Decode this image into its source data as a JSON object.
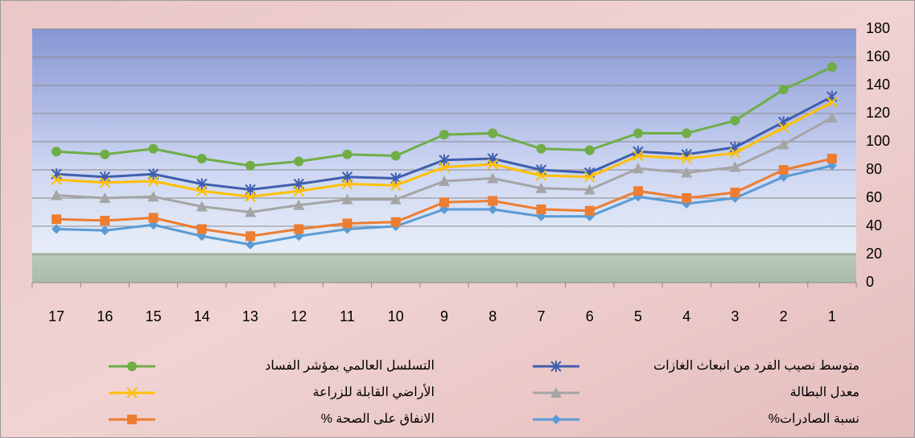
{
  "chart_data": {
    "type": "line",
    "categories": [
      1,
      2,
      3,
      4,
      5,
      6,
      7,
      8,
      9,
      10,
      11,
      12,
      13,
      14,
      15,
      16,
      17
    ],
    "x_reversed": true,
    "y_axis_side": "right",
    "series": [
      {
        "name": "متوسط نصيب الفرد من انبعاث الغازات",
        "color": "#3f5fae",
        "marker": "asterisk",
        "values": [
          132,
          114,
          96,
          91,
          93,
          78,
          80,
          88,
          87,
          74,
          75,
          70,
          66,
          70,
          77,
          75,
          77
        ]
      },
      {
        "name": "التسلسل العالمي بمؤشر الفساد",
        "color": "#70ad47",
        "marker": "circle",
        "values": [
          153,
          137,
          115,
          106,
          106,
          94,
          95,
          106,
          105,
          90,
          91,
          86,
          83,
          88,
          95,
          91,
          93
        ]
      },
      {
        "name": "معدل البطالة",
        "color": "#a5a5a5",
        "marker": "triangle",
        "values": [
          117,
          98,
          82,
          78,
          81,
          66,
          67,
          74,
          72,
          59,
          59,
          55,
          50,
          54,
          61,
          60,
          62
        ]
      },
      {
        "name": "الأراضي القابلة للزراعة",
        "color": "#ffc000",
        "marker": "x",
        "values": [
          128,
          110,
          92,
          88,
          90,
          75,
          76,
          84,
          82,
          69,
          70,
          65,
          61,
          65,
          72,
          71,
          73
        ]
      },
      {
        "name": "نسبة الصادرات%",
        "color": "#5b9bd5",
        "marker": "diamond",
        "values": [
          83,
          75,
          60,
          56,
          61,
          47,
          47,
          52,
          52,
          40,
          38,
          33,
          27,
          33,
          41,
          37,
          38
        ]
      },
      {
        "name": "الانفاق على الصحة %",
        "color": "#ed7d31",
        "marker": "square",
        "values": [
          88,
          80,
          64,
          60,
          65,
          51,
          52,
          58,
          57,
          43,
          42,
          38,
          33,
          38,
          46,
          44,
          45
        ]
      }
    ],
    "ylim": [
      0,
      180
    ],
    "yticks": [
      0,
      20,
      40,
      60,
      80,
      100,
      120,
      140,
      160,
      180
    ],
    "grid": true
  }
}
